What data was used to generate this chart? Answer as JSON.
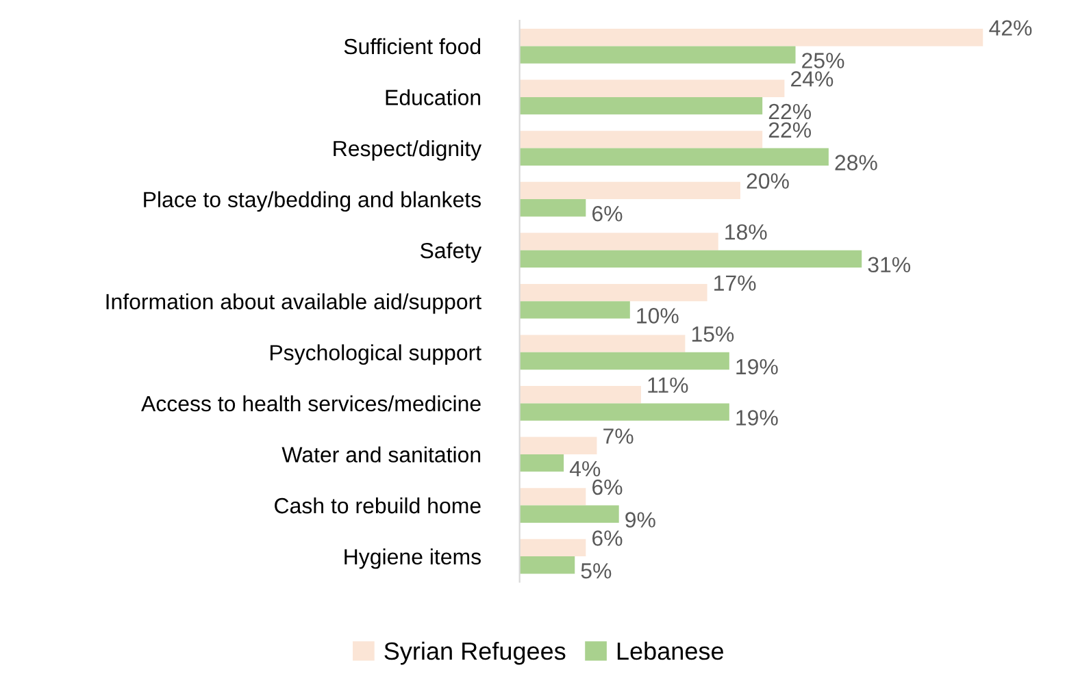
{
  "chart_data": {
    "type": "bar",
    "orientation": "horizontal",
    "categories": [
      "Sufficient food",
      "Education",
      "Respect/dignity",
      "Place to stay/bedding and blankets",
      "Safety",
      "Information about available aid/support",
      "Psychological support",
      "Access to health services/medicine",
      "Water and sanitation",
      "Cash to rebuild home",
      "Hygiene items"
    ],
    "series": [
      {
        "name": "Syrian Refugees",
        "color": "#fbe5d6",
        "values": [
          42,
          24,
          22,
          20,
          18,
          17,
          15,
          11,
          7,
          6,
          6
        ],
        "value_labels": [
          "42%",
          "24%",
          "22%",
          "20%",
          "18%",
          "17%",
          "15%",
          "11%",
          "7%",
          "6%",
          "6%"
        ]
      },
      {
        "name": "Lebanese",
        "color": "#a9d18e",
        "values": [
          25,
          22,
          28,
          6,
          31,
          10,
          19,
          19,
          4,
          9,
          5
        ],
        "value_labels": [
          "25%",
          "22%",
          "28%",
          "6%",
          "31%",
          "10%",
          "19%",
          "19%",
          "4%",
          "9%",
          "5%"
        ]
      }
    ],
    "legend": "bottom"
  }
}
